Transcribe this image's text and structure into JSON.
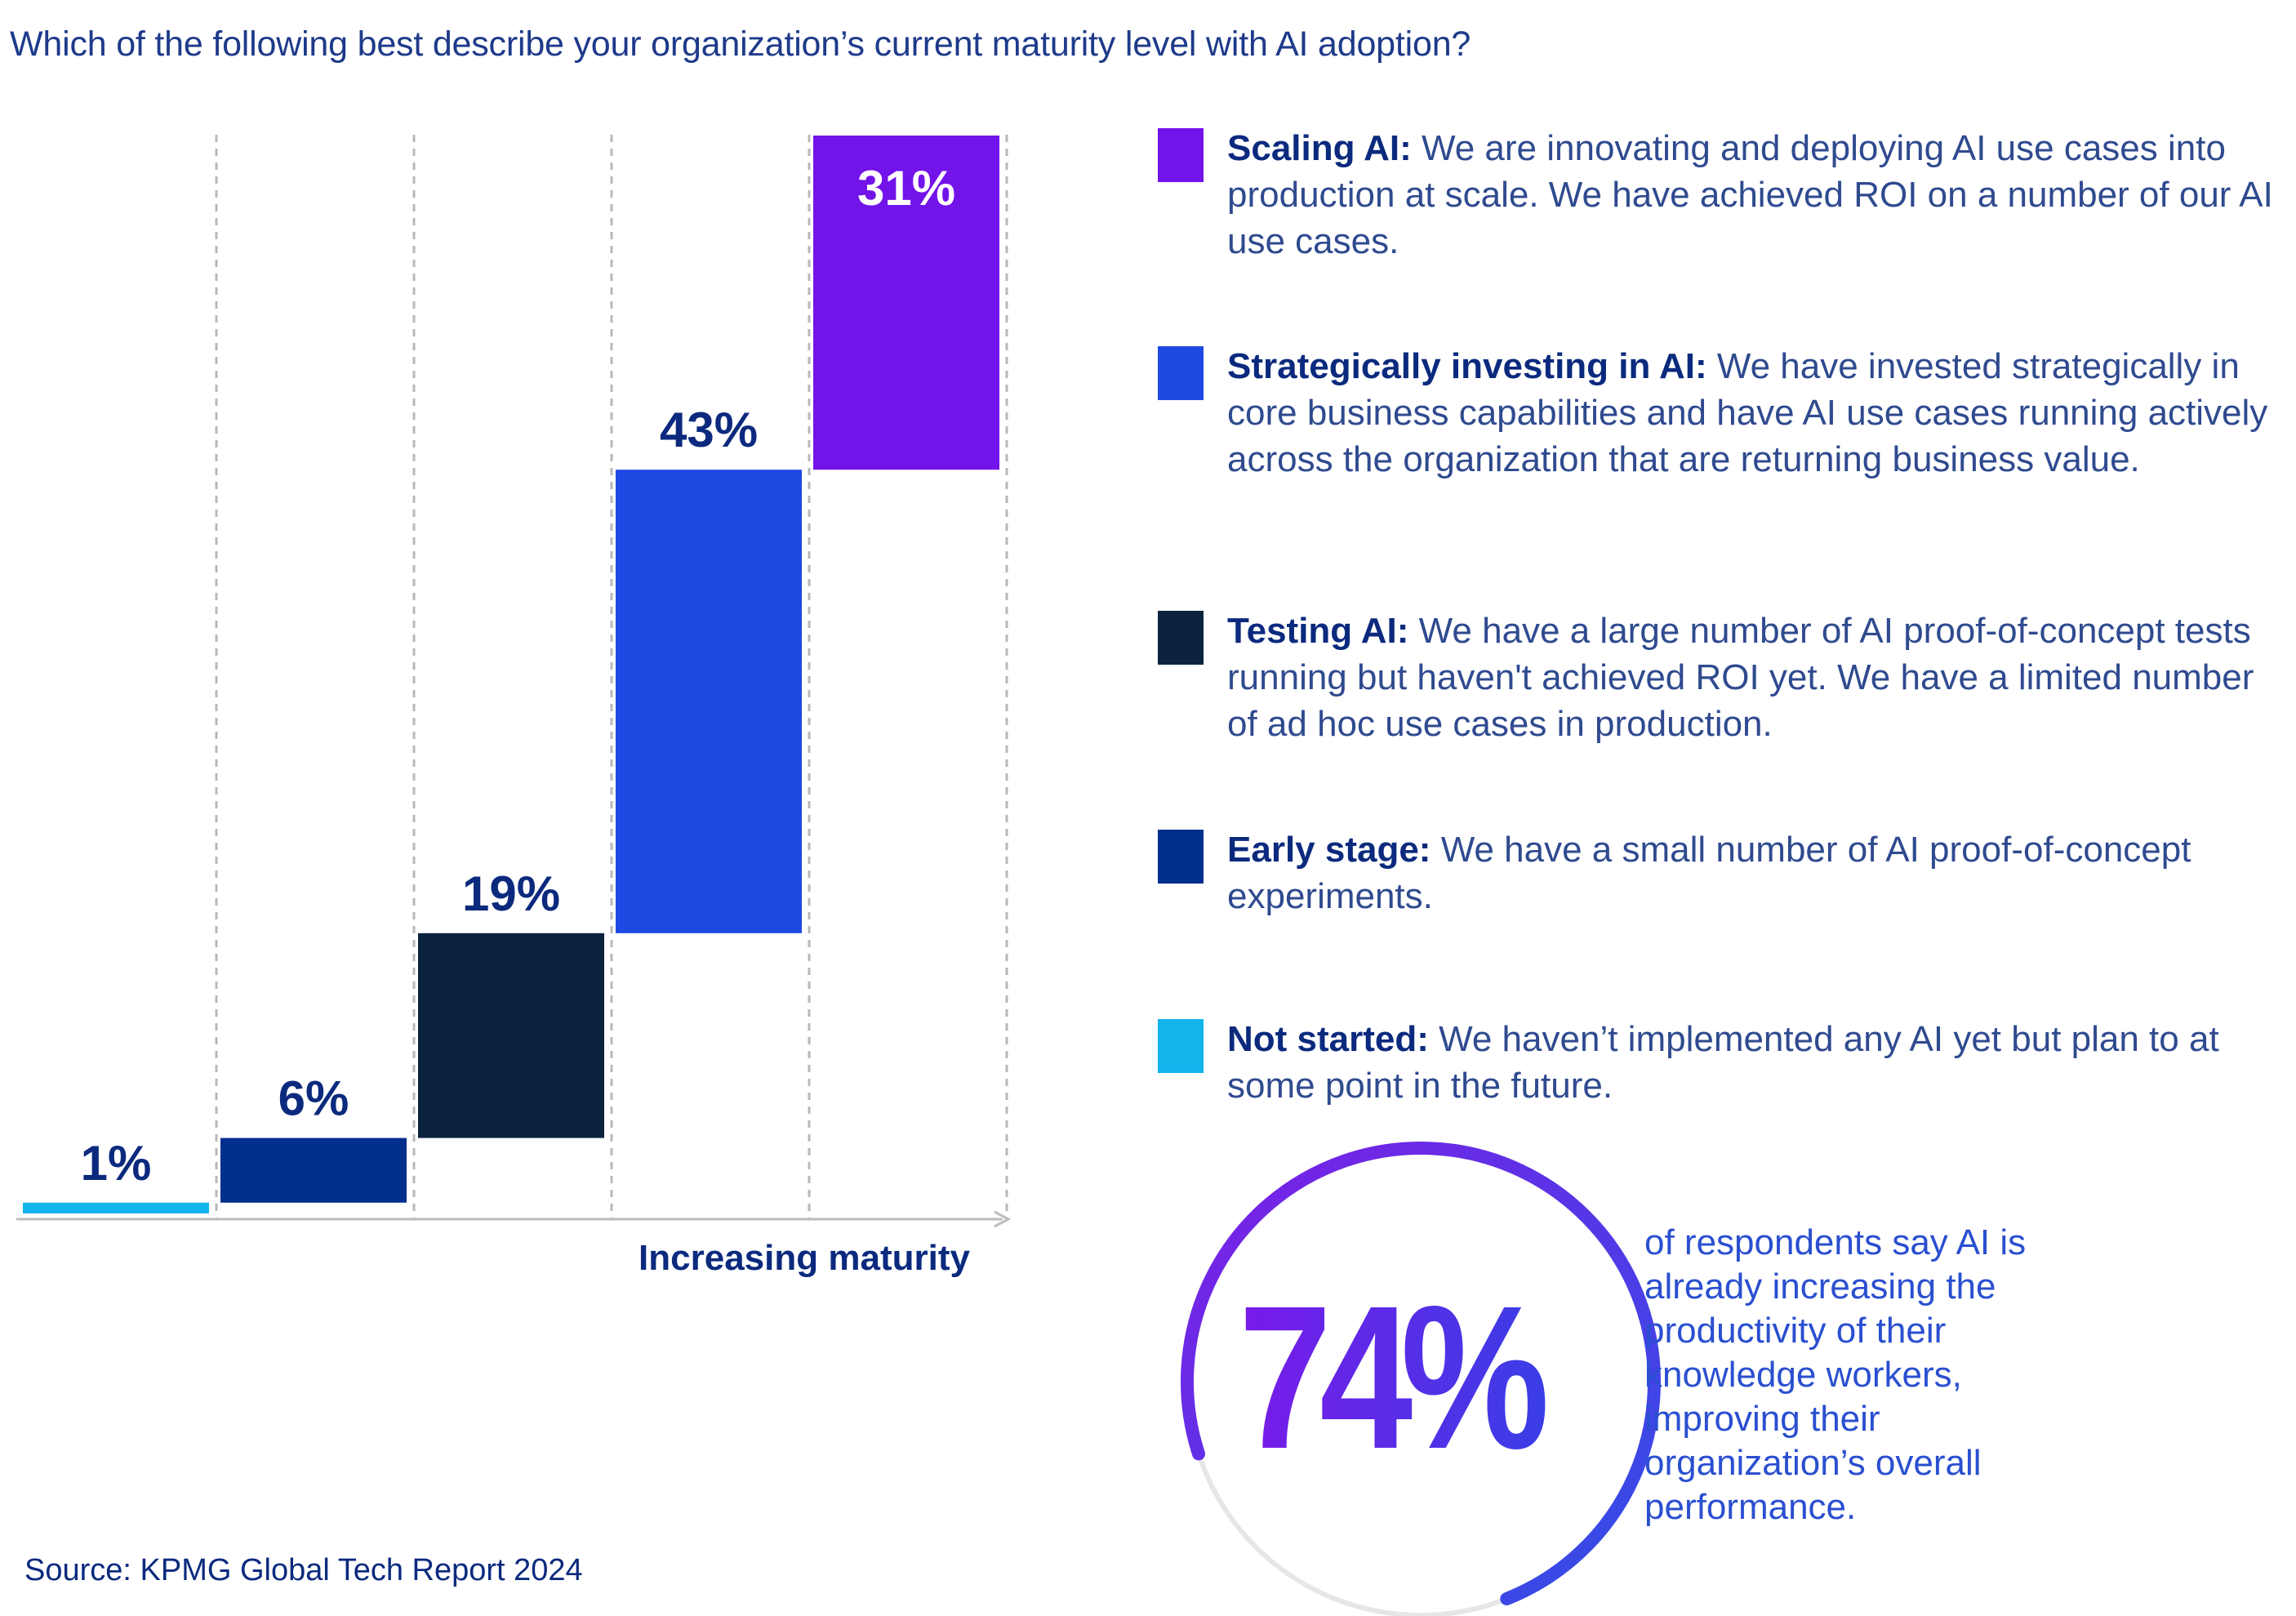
{
  "title": "Which of the following best describe your organization’s current maturity level with AI adoption?",
  "chart_data": {
    "type": "bar",
    "subtype": "stacked-step",
    "categories": [
      "Not started",
      "Early stage",
      "Testing AI",
      "Strategically investing in AI",
      "Scaling AI"
    ],
    "values": [
      1,
      6,
      19,
      43,
      31
    ],
    "value_labels": [
      "1%",
      "6%",
      "19%",
      "43%",
      "31%"
    ],
    "colors": [
      "#12b4ec",
      "#002f8e",
      "#0c2340",
      "#1e49e2",
      "#7213ea"
    ],
    "xlabel": "Increasing maturity",
    "ylabel": "",
    "ylim": [
      0,
      100
    ],
    "grid": "vertical dashed separators",
    "legend": "right"
  },
  "legend": [
    {
      "term": "Scaling AI:",
      "desc": " We are innovating and deploying AI use cases into production at scale. We have achieved ROI on a number of our AI use cases.",
      "color": "#7213ea"
    },
    {
      "term": "Strategically investing in AI:",
      "desc": " We have invested strategically in core business capabilities and have AI use cases running actively across the organization that are returning business value.",
      "color": "#1e49e2"
    },
    {
      "term": "Testing AI:",
      "desc": " We have a large number of AI proof-of-concept tests running but haven't achieved ROI yet. We have a limited number of ad hoc use cases in production.",
      "color": "#0c2340"
    },
    {
      "term": "Early stage:",
      "desc": " We have a small number of AI proof-of-concept experiments.",
      "color": "#002f8e"
    },
    {
      "term": "Not started:",
      "desc": " We haven’t implemented any AI yet but plan to at some point in the future.",
      "color": "#12b4ec"
    }
  ],
  "stat": {
    "value": "74%",
    "percent": 74,
    "text": "of respondents say AI is already increasing the productivity of their knowledge workers, improving their organization’s overall performance."
  },
  "source": "Source: KPMG Global Tech Report 2024"
}
